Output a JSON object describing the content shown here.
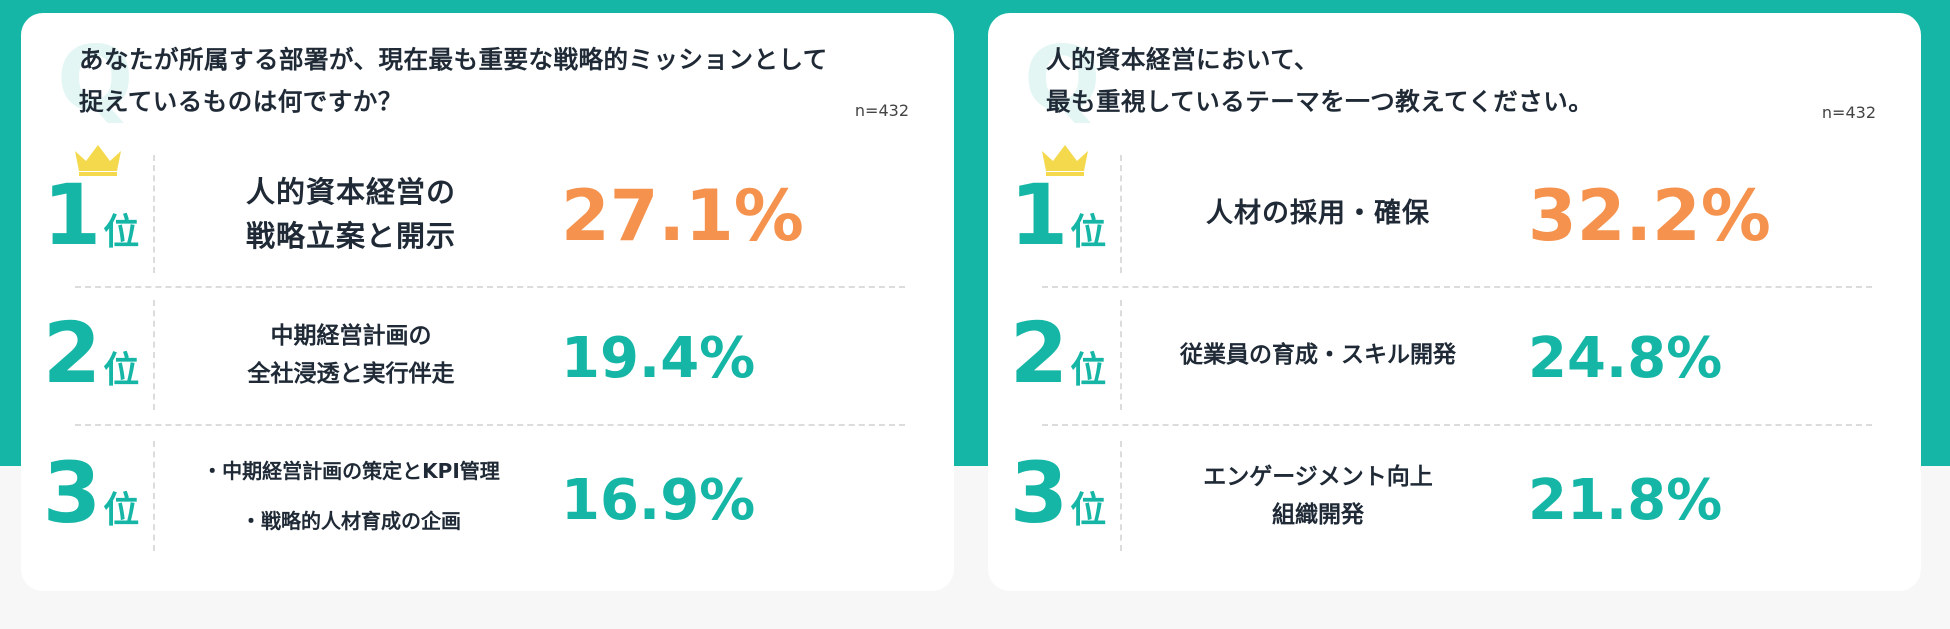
{
  "colors": {
    "teal": "#16b6a6",
    "orange": "#f5924d",
    "crown": "#f5d94c"
  },
  "chart_data": [
    {
      "type": "table",
      "question": "あなたが所属する部署が、現在最も重要な戦略的ミッションとして\n捉えているものは何ですか？",
      "q_mark": "Q",
      "n": "n=432",
      "rank_suffix": "位",
      "rows": [
        {
          "rank": "1",
          "label_lines": [
            "人的資本経営の",
            "戦略立案と開示"
          ],
          "value": 27.1,
          "value_text": "27.1%"
        },
        {
          "rank": "2",
          "label_lines": [
            "中期経営計画の",
            "全社浸透と実行伴走"
          ],
          "value": 19.4,
          "value_text": "19.4%"
        },
        {
          "rank": "3",
          "label_lines": [
            "・中期経営計画の策定とKPI管理",
            "・戦略的人材育成の企画"
          ],
          "value": 16.9,
          "value_text": "16.9%"
        }
      ]
    },
    {
      "type": "table",
      "question": "人的資本経営において、\n最も重視しているテーマを一つ教えてください。",
      "q_mark": "Q",
      "n": "n=432",
      "rank_suffix": "位",
      "rows": [
        {
          "rank": "1",
          "label_lines": [
            "人材の採用・確保"
          ],
          "value": 32.2,
          "value_text": "32.2%"
        },
        {
          "rank": "2",
          "label_lines": [
            "従業員の育成・スキル開発"
          ],
          "value": 24.8,
          "value_text": "24.8%"
        },
        {
          "rank": "3",
          "label_lines": [
            "エンゲージメント向上",
            "組織開発"
          ],
          "value": 21.8,
          "value_text": "21.8%"
        }
      ]
    }
  ]
}
